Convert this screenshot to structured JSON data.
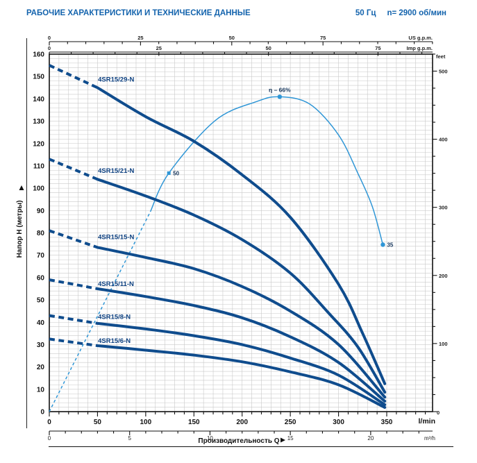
{
  "header": {
    "title": "РАБОЧИЕ ХАРАКТЕРИСТИКИ И ТЕХНИЧЕСКИЕ ДАННЫЕ",
    "frequency": "50 Гц",
    "speed": "n= 2900 об/мин"
  },
  "chart_data": {
    "type": "line",
    "title": "РАБОЧИЕ ХАРАКТЕРИСТИКИ И ТЕХНИЧЕСКИЕ ДАННЫЕ",
    "condition_labels": [
      "50 Гц",
      "n= 2900 об/мин"
    ],
    "colors": {
      "curve": "#0f4c8d",
      "efficiency": "#2f96d6",
      "series_label": "#0d4080",
      "grid": "#c9c9c9",
      "axis": "#111111",
      "header_blue": "#1363ad"
    },
    "x_axis": {
      "label": "Производительность Q",
      "primary_unit": "l/min",
      "range_lmin": [
        0,
        350
      ],
      "grid_step_lmin": 10,
      "units": [
        {
          "name": "US g.p.m.",
          "position": "top",
          "lmin_per_unit": 3.785,
          "labels": [
            0,
            25,
            50,
            75
          ],
          "minor_step": 5
        },
        {
          "name": "Imp g.p.m.",
          "position": "top",
          "lmin_per_unit": 4.546,
          "labels": [
            0,
            25,
            50,
            75
          ],
          "minor_step": 5
        },
        {
          "name": "l/min",
          "position": "bottom",
          "lmin_per_unit": 1,
          "labels": [
            0,
            50,
            100,
            150,
            200,
            250,
            300,
            350
          ],
          "minor_step": 10
        },
        {
          "name": "m³/h",
          "position": "bottom",
          "lmin_per_unit": 16.667,
          "labels": [
            0,
            5,
            10,
            15,
            20
          ],
          "minor_step": 1
        }
      ]
    },
    "y_axis": {
      "label": "Напор H (метры)",
      "unit": "m",
      "range_m": [
        0,
        160
      ],
      "labels_m": [
        0,
        10,
        20,
        30,
        40,
        50,
        60,
        70,
        80,
        90,
        100,
        110,
        120,
        130,
        140,
        150,
        160
      ],
      "grid_step_m": 2,
      "right_unit": {
        "name": "feet",
        "m_per_unit": 0.3048,
        "labels": [
          0,
          100,
          200,
          300,
          400,
          500
        ],
        "minor_step": 25
      }
    },
    "series": [
      {
        "name": "4SR15/29-N",
        "dashed_until_lmin": 50,
        "label_at": [
          50.5,
          147.8
        ],
        "points_lmin_m": [
          [
            0,
            155
          ],
          [
            50,
            145
          ],
          [
            100,
            132
          ],
          [
            150,
            121
          ],
          [
            200,
            106
          ],
          [
            250,
            87
          ],
          [
            300,
            57
          ],
          [
            325,
            35
          ],
          [
            348,
            12.5
          ]
        ]
      },
      {
        "name": "4SR15/21-N",
        "dashed_until_lmin": 50,
        "label_at": [
          50.5,
          106.8
        ],
        "points_lmin_m": [
          [
            0,
            113
          ],
          [
            50,
            104
          ],
          [
            100,
            96.5
          ],
          [
            150,
            88
          ],
          [
            200,
            77
          ],
          [
            250,
            62
          ],
          [
            290,
            44
          ],
          [
            320,
            29
          ],
          [
            348,
            8.7
          ]
        ]
      },
      {
        "name": "4SR15/15-N",
        "dashed_until_lmin": 50,
        "label_at": [
          50.5,
          77.2
        ],
        "points_lmin_m": [
          [
            0,
            81
          ],
          [
            50,
            73.5
          ],
          [
            100,
            69
          ],
          [
            150,
            64
          ],
          [
            200,
            56
          ],
          [
            250,
            45
          ],
          [
            300,
            30
          ],
          [
            348,
            6.5
          ]
        ]
      },
      {
        "name": "4SR15/11-N",
        "dashed_until_lmin": 50,
        "label_at": [
          50.5,
          56.3
        ],
        "points_lmin_m": [
          [
            0,
            59
          ],
          [
            50,
            55
          ],
          [
            100,
            51.5
          ],
          [
            150,
            47.5
          ],
          [
            200,
            42
          ],
          [
            250,
            33.5
          ],
          [
            300,
            22
          ],
          [
            348,
            4.7
          ]
        ]
      },
      {
        "name": "4SR15/8-N",
        "dashed_until_lmin": 50,
        "label_at": [
          50.5,
          41.5
        ],
        "points_lmin_m": [
          [
            0,
            43
          ],
          [
            50,
            39.5
          ],
          [
            100,
            37
          ],
          [
            150,
            34
          ],
          [
            200,
            30
          ],
          [
            250,
            24
          ],
          [
            300,
            16.3
          ],
          [
            348,
            3.1
          ]
        ]
      },
      {
        "name": "4SR15/6-N",
        "dashed_until_lmin": 50,
        "label_at": [
          50.5,
          30.8
        ],
        "points_lmin_m": [
          [
            0,
            32.5
          ],
          [
            50,
            29.5
          ],
          [
            100,
            27.5
          ],
          [
            150,
            25.3
          ],
          [
            200,
            22.3
          ],
          [
            250,
            17.8
          ],
          [
            300,
            12
          ],
          [
            348,
            1.9
          ]
        ]
      }
    ],
    "efficiency": {
      "peak_label": "η – 66%",
      "scale_m_per_percent": 2.135,
      "dashed_until_lmin": 105,
      "points_lmin_pct": [
        [
          0,
          0
        ],
        [
          50,
          20
        ],
        [
          105,
          42
        ],
        [
          124,
          50
        ],
        [
          172,
          61
        ],
        [
          215,
          65
        ],
        [
          239,
          66
        ],
        [
          270,
          64.5
        ],
        [
          300,
          58
        ],
        [
          320,
          50
        ],
        [
          335,
          43
        ],
        [
          346,
          35
        ]
      ],
      "markers": [
        {
          "label": "50",
          "lmin": 124,
          "pct": 50,
          "shape": "square"
        },
        {
          "label": "η – 66%",
          "lmin": 239,
          "pct": 66,
          "shape": "circle",
          "label_above": true
        },
        {
          "label": "35",
          "lmin": 346,
          "pct": 35,
          "shape": "circle"
        }
      ]
    }
  }
}
